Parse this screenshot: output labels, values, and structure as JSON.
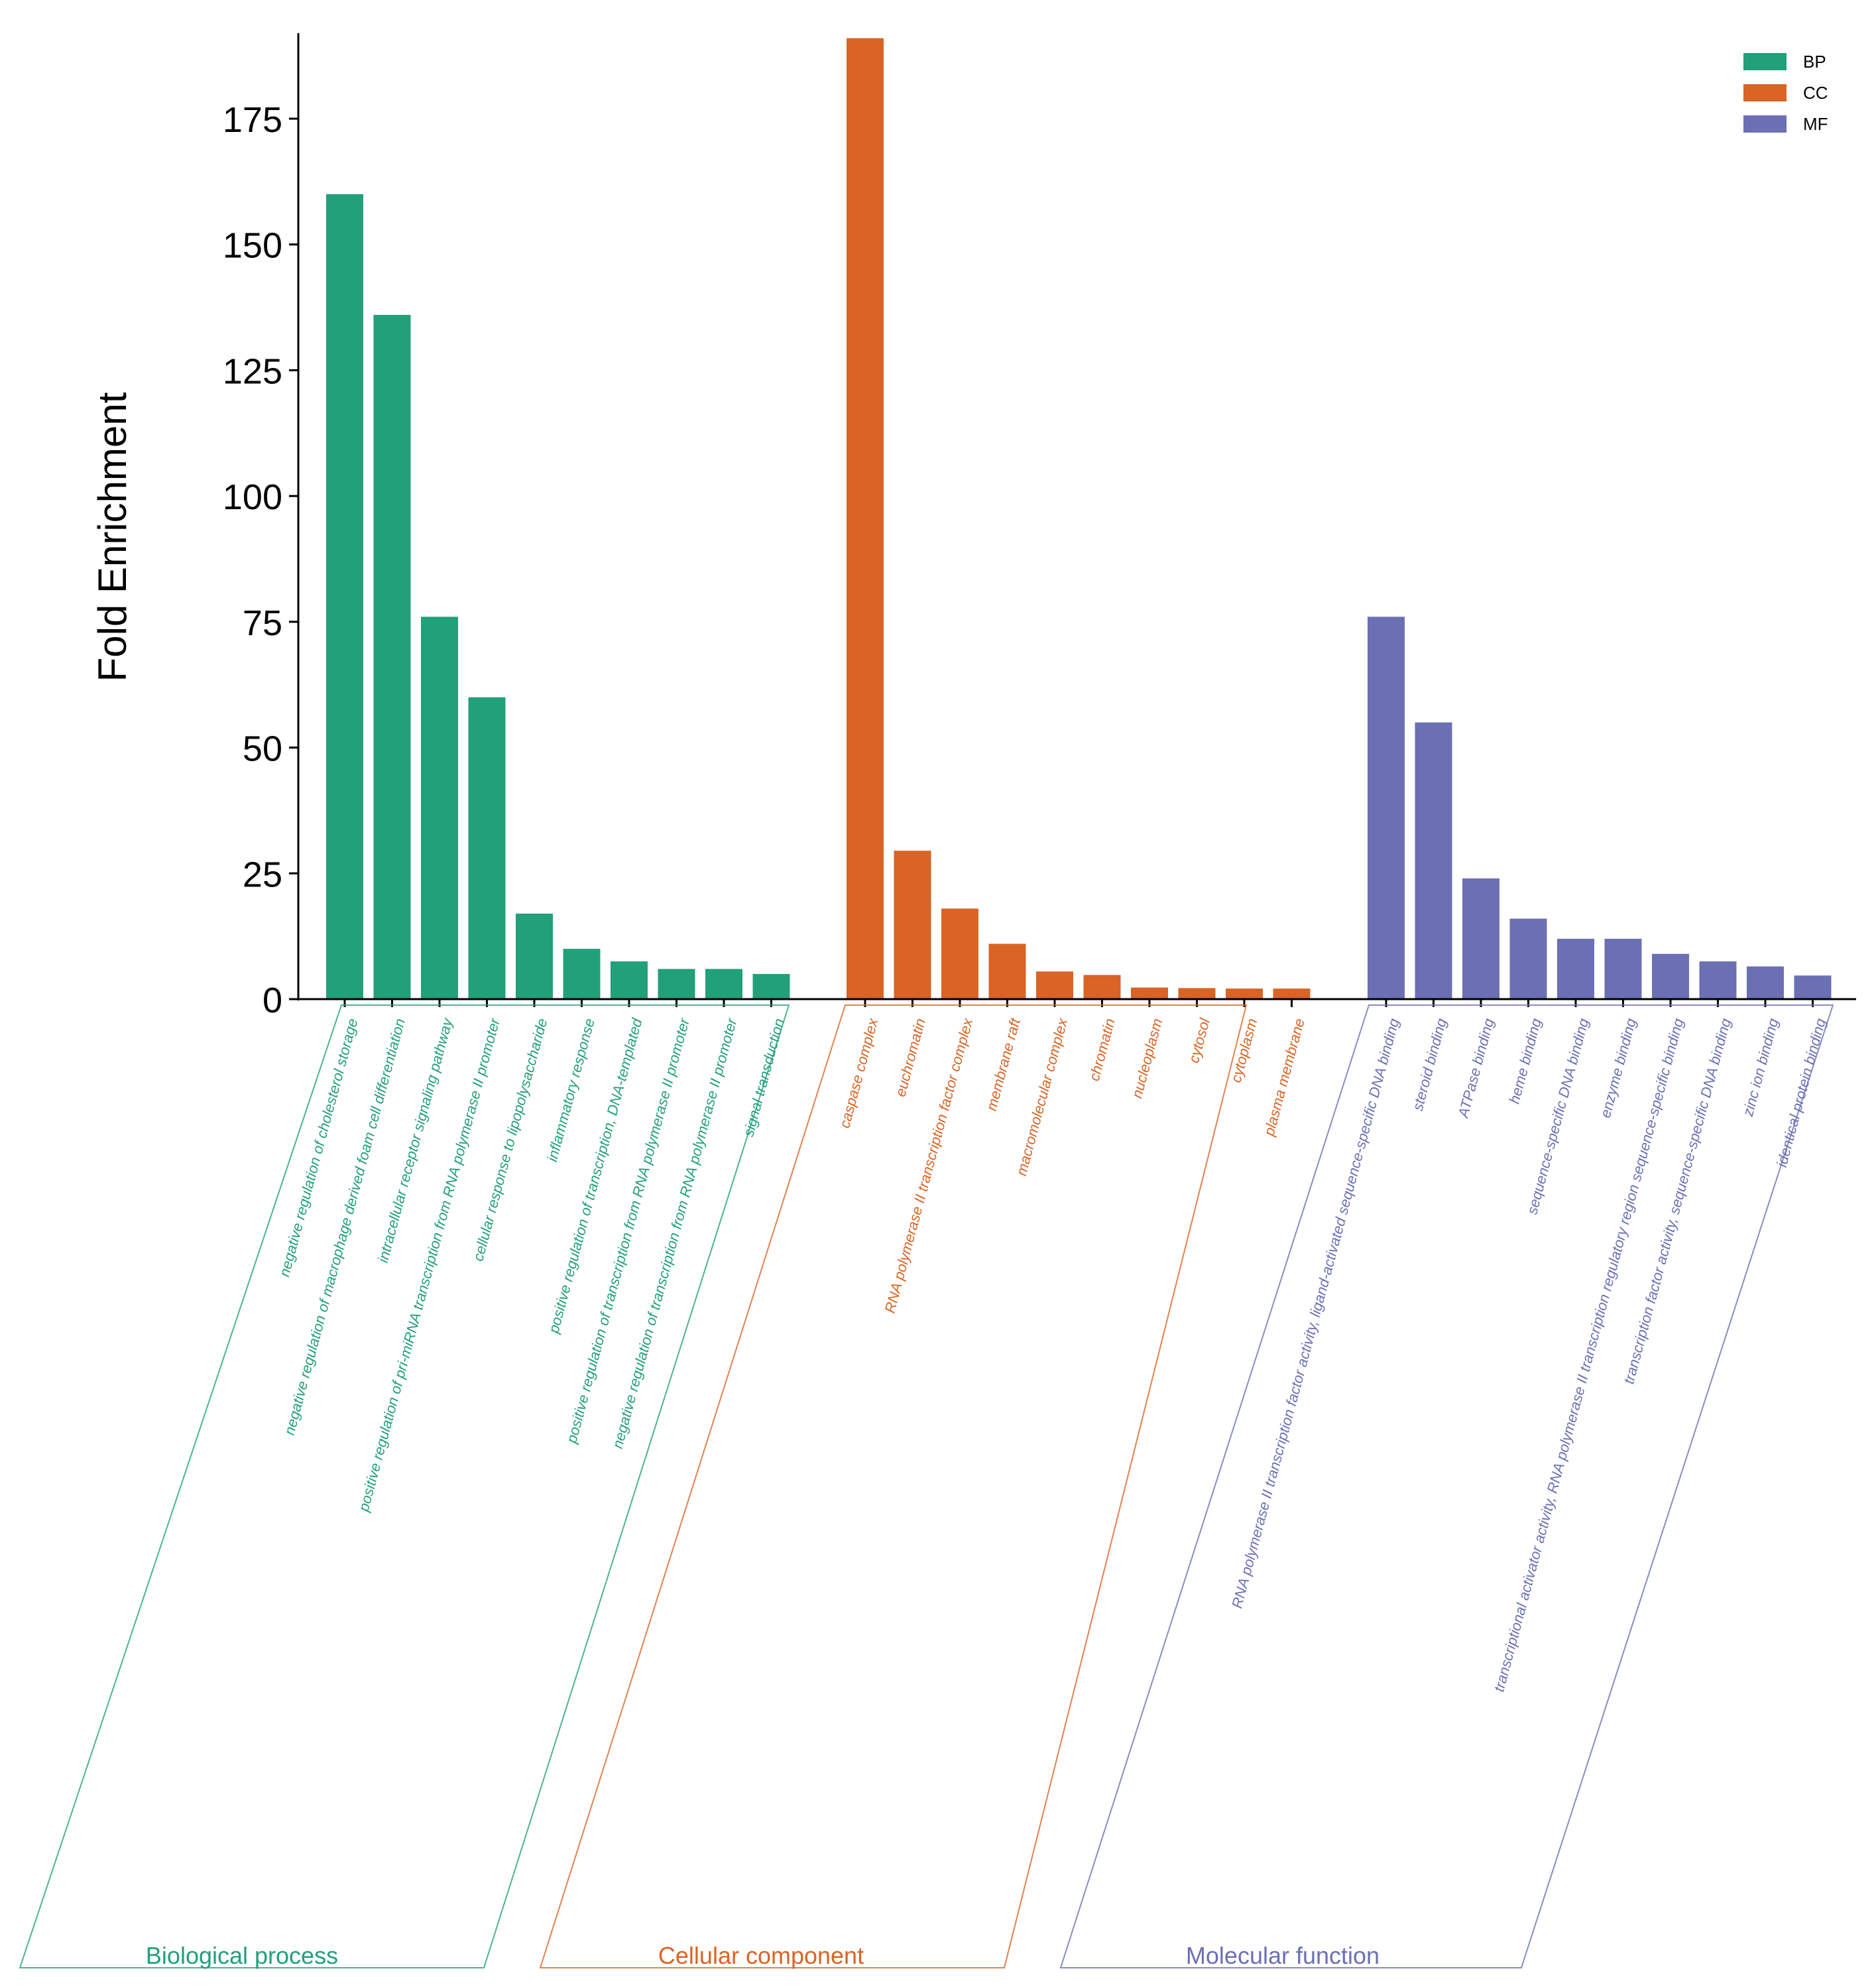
{
  "chart_data": {
    "type": "bar",
    "ylabel": "Fold Enrichment",
    "ylim": [
      0,
      192
    ],
    "yticks": [
      0,
      25,
      50,
      75,
      100,
      125,
      150,
      175
    ],
    "grid": false,
    "legend_position": "top-right",
    "groups": [
      {
        "key": "BP",
        "legend_label": "BP",
        "name": "Biological process",
        "color": "#22a07a",
        "categories": [
          "negative regulation of cholesterol storage",
          "negative regulation of macrophage derived foam cell differentiation",
          "intracellular receptor signaling pathway",
          "positive regulation of pri-miRNA transcription from RNA polymerase II promoter",
          "cellular response to lipopolysaccharide",
          "inflammatory response",
          "positive regulation of transcription, DNA-templated",
          "positive regulation of transcription from RNA polymerase II promoter",
          "negative regulation of transcription from RNA polymerase II promoter",
          "signal transduction"
        ],
        "values": [
          160,
          136,
          76,
          60,
          17,
          10,
          7.5,
          6,
          6,
          5
        ]
      },
      {
        "key": "CC",
        "legend_label": "CC",
        "name": "Cellular component",
        "color": "#d96425",
        "categories": [
          "caspase complex",
          "euchromatin",
          "RNA polymerase II transcription factor complex",
          "membrane raft",
          "macromolecular complex",
          "chromatin",
          "nucleoplasm",
          "cytosol",
          "cytoplasm",
          "plasma membrane"
        ],
        "values": [
          191,
          29.5,
          18,
          11,
          5.5,
          4.8,
          2.3,
          2.2,
          2.1,
          2.1
        ]
      },
      {
        "key": "MF",
        "legend_label": "MF",
        "name": "Molecular function",
        "color": "#6b70b4",
        "categories": [
          "RNA polymerase II transcription factor activity, ligand-activated sequence-specific DNA binding",
          "steroid binding",
          "ATPase binding",
          "heme binding",
          "sequence-specific DNA binding",
          "enzyme binding",
          "transcriptional activator activity, RNA polymerase II transcription regulatory region sequence-specific binding",
          "transcription factor activity, sequence-specific DNA binding",
          "zinc ion binding",
          "identical protein binding"
        ],
        "values": [
          76,
          55,
          24,
          16,
          12,
          12,
          9,
          7.5,
          6.5,
          4.7
        ]
      }
    ]
  }
}
